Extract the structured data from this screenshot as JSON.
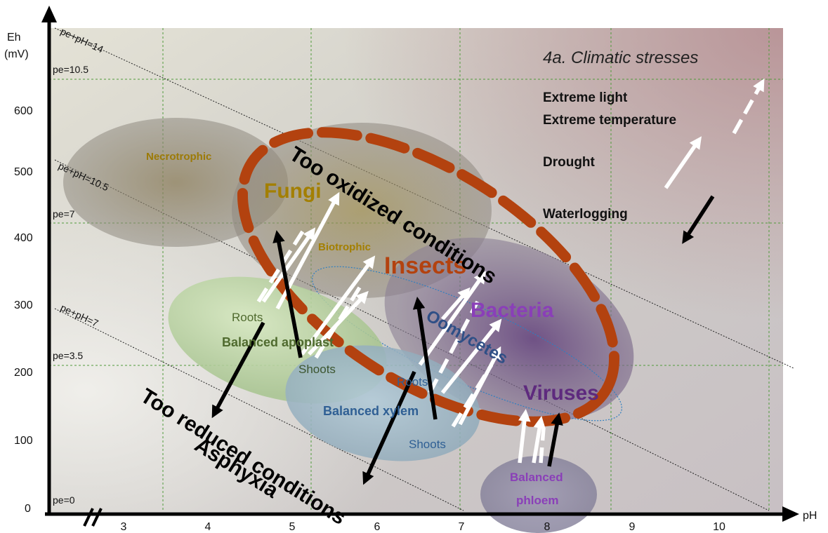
{
  "title": "4a. Climatic stresses",
  "axes": {
    "y_label_line1": "Eh",
    "y_label_line2": "(mV)",
    "x_label": "pH",
    "y_ticks": [
      "0",
      "100",
      "200",
      "300",
      "400",
      "500",
      "600"
    ],
    "x_ticks": [
      "3",
      "4",
      "5",
      "6",
      "7",
      "8",
      "9",
      "10"
    ]
  },
  "pe_lines": {
    "pe0": "pe=0",
    "pe35": "pe=3.5",
    "pe7": "pe=7",
    "pe105": "pe=10.5",
    "sum7": "pe+pH=7",
    "sum105": "pe+pH=10.5",
    "sum14": "pe+pH=14"
  },
  "legend": {
    "light": "Extreme light",
    "temperature": "Extreme  temperature",
    "drought": "Drought",
    "waterlogging": "Waterlogging"
  },
  "regions": {
    "necrotrophic": "Necrotrophic",
    "fungi": "Fungi",
    "biotrophic": "Biotrophic",
    "insects": "Insects",
    "bacteria": "Bacteria",
    "oomycetes": "Oomycetes",
    "viruses": "Viruses",
    "apo_roots": "Roots",
    "apo_label": "Balanced  apoplast",
    "apo_shoots": "Shoots",
    "xyl_roots": "Roots",
    "xyl_label": "Balanced  xylem",
    "xyl_shoots": "Shoots",
    "phloem_line1": "Balanced",
    "phloem_line2": "phloem"
  },
  "conditions": {
    "oxidized": "Too oxidized conditions",
    "reduced_line1": "Too reduced conditions",
    "reduced_line2": "Asphyxia"
  },
  "colors": {
    "oxidized_ring": "#b3420f",
    "fungi_text": "#a37f00",
    "insects_text": "#b3420f",
    "bacteria_text": "#8a3fb8",
    "viruses_text": "#5e2a7e",
    "oomycetes_text": "#2f4f86",
    "xylem_text": "#2f5f94",
    "apoplast_text": "#4f6a2e"
  }
}
